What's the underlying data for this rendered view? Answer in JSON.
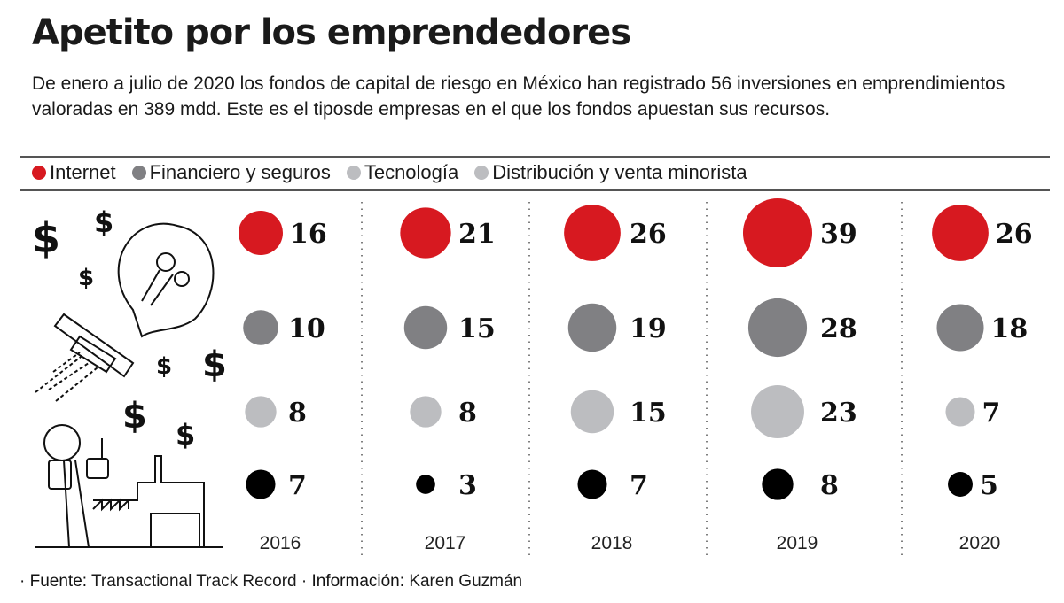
{
  "title": "Apetito por los emprendedores",
  "subtitle": "De enero a julio de 2020 los fondos de capital de riesgo en México han registrado 56 inversiones en emprendimientos valoradas en 389 mdd. Este es el tiposde empresas en el que los fondos apuestan sus recursos.",
  "legend": [
    {
      "label": "Internet",
      "color": "#d71920"
    },
    {
      "label": "Financiero y seguros",
      "color": "#808083"
    },
    {
      "label": "Tecnología",
      "color": "#bcbdc0"
    },
    {
      "label": "Distribución y venta minorista",
      "color": "#bcbdc0"
    }
  ],
  "chart_data": {
    "type": "bubble",
    "title": "Apetito por los emprendedores",
    "categories": [
      "2016",
      "2017",
      "2018",
      "2019",
      "2020"
    ],
    "series": [
      {
        "name": "Internet",
        "color": "#d71920",
        "values": [
          16,
          21,
          26,
          39,
          26
        ]
      },
      {
        "name": "Financiero y seguros",
        "color": "#808083",
        "values": [
          10,
          15,
          19,
          28,
          18
        ]
      },
      {
        "name": "Tecnología",
        "color": "#bcbdc0",
        "values": [
          8,
          8,
          15,
          23,
          7
        ]
      },
      {
        "name": "Distribución y venta minorista",
        "color": "#000000",
        "values": [
          7,
          3,
          7,
          8,
          5
        ]
      }
    ],
    "legend_position": "top"
  },
  "footer": {
    "source_label": "Fuente:",
    "source": "Transactional Track Record",
    "info_label": "Información:",
    "info": "Karen Guzmán"
  },
  "illustration": {
    "dollar_sign": "$"
  }
}
